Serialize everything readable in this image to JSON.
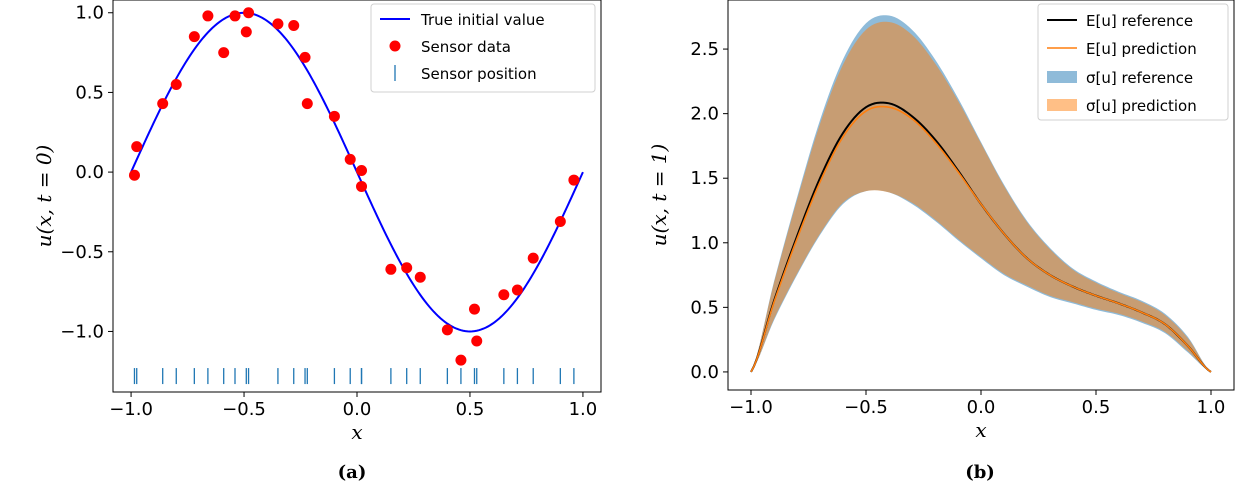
{
  "figure": {
    "captions": [
      "(a)",
      "(b)"
    ]
  },
  "chart_data": [
    {
      "type": "scatter",
      "xlabel": "x",
      "ylabel": "u(x, t = 0)",
      "xlim": [
        -1.08,
        1.08
      ],
      "ylim": [
        -1.38,
        1.08
      ],
      "xticks": [
        -1.0,
        -0.5,
        0.0,
        0.5,
        1.0
      ],
      "xtick_labels": [
        "−1.0",
        "−0.5",
        "0.0",
        "0.5",
        "1.0"
      ],
      "yticks": [
        -1.0,
        -0.5,
        0.0,
        0.5,
        1.0
      ],
      "ytick_labels": [
        "−1.0",
        "−0.5",
        "0.0",
        "0.5",
        "1.0"
      ],
      "grid": false,
      "legend_position": "top-right",
      "series": [
        {
          "name": "True initial value",
          "kind": "line",
          "color": "#0000ff",
          "function": "-sin(pi*x)",
          "x": [
            -1.0,
            -0.9,
            -0.8,
            -0.7,
            -0.6,
            -0.5,
            -0.4,
            -0.3,
            -0.2,
            -0.1,
            0.0,
            0.1,
            0.2,
            0.3,
            0.4,
            0.5,
            0.6,
            0.7,
            0.8,
            0.9,
            1.0
          ],
          "y": [
            0.0,
            0.309,
            0.588,
            0.809,
            0.951,
            1.0,
            0.951,
            0.809,
            0.588,
            0.309,
            0.0,
            -0.309,
            -0.588,
            -0.809,
            -0.951,
            -1.0,
            -0.951,
            -0.809,
            -0.588,
            -0.309,
            0.0
          ]
        },
        {
          "name": "Sensor data",
          "kind": "scatter",
          "color": "#ff0000",
          "x": [
            -0.985,
            -0.975,
            -0.86,
            -0.8,
            -0.72,
            -0.66,
            -0.59,
            -0.54,
            -0.49,
            -0.48,
            -0.35,
            -0.28,
            -0.23,
            -0.22,
            -0.1,
            -0.03,
            0.02,
            0.02,
            0.15,
            0.22,
            0.28,
            0.4,
            0.46,
            0.52,
            0.53,
            0.65,
            0.71,
            0.78,
            0.9,
            0.96
          ],
          "y": [
            -0.02,
            0.16,
            0.43,
            0.55,
            0.85,
            0.98,
            0.75,
            0.98,
            0.88,
            1.0,
            0.93,
            0.92,
            0.72,
            0.43,
            0.35,
            0.08,
            0.01,
            -0.09,
            -0.61,
            -0.6,
            -0.66,
            -0.99,
            -1.18,
            -0.86,
            -1.06,
            -0.77,
            -0.74,
            -0.54,
            -0.31,
            -0.05
          ]
        },
        {
          "name": "Sensor position",
          "kind": "rug",
          "color": "#1f77b4",
          "y_value": -1.28,
          "x": [
            -0.985,
            -0.975,
            -0.86,
            -0.8,
            -0.72,
            -0.66,
            -0.59,
            -0.54,
            -0.49,
            -0.48,
            -0.35,
            -0.28,
            -0.23,
            -0.22,
            -0.1,
            -0.03,
            0.02,
            0.02,
            0.15,
            0.22,
            0.28,
            0.4,
            0.46,
            0.52,
            0.53,
            0.65,
            0.71,
            0.78,
            0.9,
            0.96
          ]
        }
      ]
    },
    {
      "type": "area",
      "xlabel": "x",
      "ylabel": "u(x, t = 1)",
      "xlim": [
        -1.1,
        1.1
      ],
      "ylim": [
        -0.14,
        2.88
      ],
      "xticks": [
        -1.0,
        -0.5,
        0.0,
        0.5,
        1.0
      ],
      "xtick_labels": [
        "−1.0",
        "−0.5",
        "0.0",
        "0.5",
        "1.0"
      ],
      "yticks": [
        0.0,
        0.5,
        1.0,
        1.5,
        2.0,
        2.5
      ],
      "ytick_labels": [
        "0.0",
        "0.5",
        "1.0",
        "1.5",
        "2.0",
        "2.5"
      ],
      "grid": false,
      "legend_position": "top-right",
      "x": [
        -1.0,
        -0.9,
        -0.8,
        -0.7,
        -0.6,
        -0.5,
        -0.4,
        -0.3,
        -0.2,
        -0.1,
        0.0,
        0.1,
        0.2,
        0.3,
        0.4,
        0.5,
        0.6,
        0.7,
        0.8,
        0.9,
        1.0
      ],
      "series": [
        {
          "name": "E[u] reference",
          "kind": "line",
          "color": "#000000",
          "y": [
            0.0,
            0.55,
            1.05,
            1.5,
            1.85,
            2.05,
            2.08,
            1.98,
            1.8,
            1.56,
            1.3,
            1.07,
            0.88,
            0.75,
            0.66,
            0.59,
            0.53,
            0.46,
            0.37,
            0.2,
            0.0
          ]
        },
        {
          "name": "E[u] prediction",
          "kind": "line",
          "color": "#ff7f0e",
          "y": [
            0.0,
            0.54,
            1.03,
            1.47,
            1.82,
            2.02,
            2.05,
            1.96,
            1.78,
            1.55,
            1.3,
            1.07,
            0.88,
            0.75,
            0.66,
            0.59,
            0.53,
            0.46,
            0.37,
            0.2,
            0.0
          ]
        },
        {
          "name": "σ[u] reference",
          "kind": "band",
          "color": "#1f77b4",
          "lower": [
            0.0,
            0.4,
            0.75,
            1.06,
            1.3,
            1.4,
            1.39,
            1.3,
            1.17,
            1.02,
            0.88,
            0.75,
            0.66,
            0.58,
            0.53,
            0.48,
            0.44,
            0.38,
            0.3,
            0.15,
            0.0
          ],
          "upper": [
            0.0,
            0.7,
            1.35,
            1.95,
            2.42,
            2.7,
            2.76,
            2.65,
            2.42,
            2.12,
            1.78,
            1.45,
            1.17,
            0.96,
            0.8,
            0.7,
            0.62,
            0.55,
            0.45,
            0.27,
            0.0
          ]
        },
        {
          "name": "σ[u] prediction",
          "kind": "band",
          "color": "#ff7f0e",
          "lower": [
            0.0,
            0.41,
            0.76,
            1.07,
            1.31,
            1.4,
            1.39,
            1.31,
            1.18,
            1.03,
            0.89,
            0.76,
            0.67,
            0.59,
            0.54,
            0.49,
            0.45,
            0.39,
            0.31,
            0.16,
            0.0
          ],
          "upper": [
            0.0,
            0.69,
            1.33,
            1.92,
            2.38,
            2.65,
            2.71,
            2.61,
            2.39,
            2.1,
            1.77,
            1.44,
            1.16,
            0.95,
            0.79,
            0.69,
            0.61,
            0.54,
            0.44,
            0.26,
            0.0
          ]
        }
      ]
    }
  ]
}
